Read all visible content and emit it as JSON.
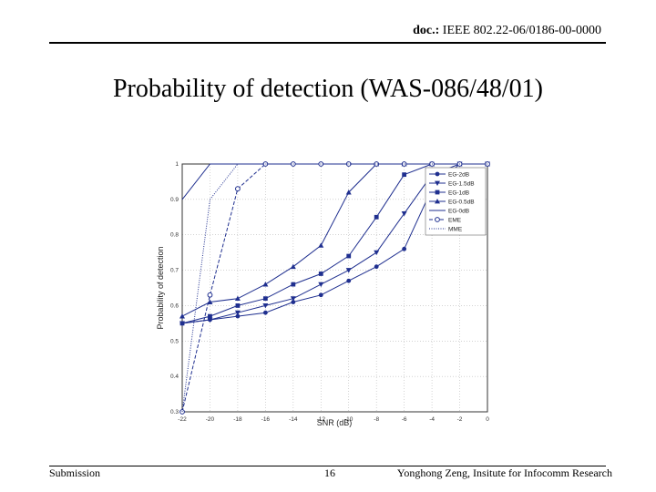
{
  "header": {
    "doc_label": "doc.:",
    "doc_number": "IEEE 802.22-06/0186-00-0000"
  },
  "slide_title": "Probability of detection (WAS-086/48/01)",
  "footer": {
    "left": "Submission",
    "center": "16",
    "right": "Yonghong Zeng, Insitute for Infocomm Research"
  },
  "chart_data": {
    "type": "line",
    "xlabel": "SNR (dB)",
    "ylabel": "Probability of detection",
    "x": [
      -22,
      -20,
      -18,
      -16,
      -14,
      -12,
      -10,
      -8,
      -6,
      -4,
      -2,
      0
    ],
    "xticks": [
      "-22",
      "-20",
      "-18",
      "-16",
      "-14",
      "-12",
      "-10",
      "-8",
      "-6",
      "-4",
      "-2",
      "0"
    ],
    "xlim": [
      -22,
      0
    ],
    "ylim": [
      0.3,
      1
    ],
    "yticks": [
      "0.3",
      "0.4",
      "0.5",
      "0.6",
      "0.7",
      "0.8",
      "0.9",
      "1"
    ],
    "grid": true,
    "legend_position": "top-right",
    "color": "#1f2f8f",
    "series": [
      {
        "name": "EG-2dB",
        "marker": "circle",
        "dash": "solid",
        "values": [
          0.55,
          0.56,
          0.57,
          0.58,
          0.61,
          0.63,
          0.67,
          0.71,
          0.76,
          0.93,
          1,
          1
        ]
      },
      {
        "name": "EG-1.5dB",
        "marker": "triangle-down",
        "dash": "solid",
        "values": [
          0.55,
          0.56,
          0.58,
          0.6,
          0.62,
          0.66,
          0.7,
          0.75,
          0.86,
          0.97,
          1,
          1
        ]
      },
      {
        "name": "EG-1dB",
        "marker": "square",
        "dash": "solid",
        "values": [
          0.55,
          0.57,
          0.6,
          0.62,
          0.66,
          0.69,
          0.74,
          0.85,
          0.97,
          1,
          1,
          1
        ]
      },
      {
        "name": "EG-0.5dB",
        "marker": "triangle-up",
        "dash": "solid",
        "values": [
          0.57,
          0.61,
          0.62,
          0.66,
          0.71,
          0.77,
          0.92,
          1,
          1,
          1,
          1,
          1
        ]
      },
      {
        "name": "EG-0dB",
        "marker": "none",
        "dash": "solid",
        "values": [
          0.9,
          1,
          1,
          1,
          1,
          1,
          1,
          1,
          1,
          1,
          1,
          1
        ]
      },
      {
        "name": "EME",
        "marker": "open-circle",
        "dash": "dashed",
        "values": [
          0.28,
          0.63,
          0.93,
          1,
          1,
          1,
          1,
          1,
          1,
          1,
          1,
          1
        ]
      },
      {
        "name": "MME",
        "marker": "none",
        "dash": "dotted",
        "values": [
          0.3,
          0.9,
          1,
          1,
          1,
          1,
          1,
          1,
          1,
          1,
          1,
          1
        ]
      }
    ]
  }
}
